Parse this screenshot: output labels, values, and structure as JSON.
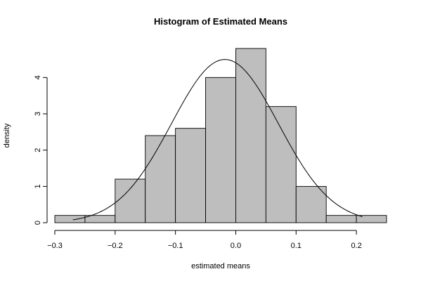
{
  "chart_data": {
    "type": "bar",
    "title": "Histogram of Estimated Means",
    "xlabel": "estimated means",
    "ylabel": "density",
    "bin_edges": [
      -0.3,
      -0.25,
      -0.2,
      -0.15,
      -0.1,
      -0.05,
      0.0,
      0.05,
      0.1,
      0.15,
      0.2,
      0.25
    ],
    "values": [
      0.2,
      0.2,
      1.2,
      2.4,
      2.6,
      4.0,
      4.8,
      3.2,
      1.0,
      0.2,
      0.2
    ],
    "xlim": [
      -0.3,
      0.25
    ],
    "ylim": [
      0,
      4.8
    ],
    "x_ticks": [
      -0.3,
      -0.2,
      -0.1,
      0.0,
      0.1,
      0.2
    ],
    "x_tick_labels": [
      "−0.3",
      "−0.2",
      "−0.1",
      "0.0",
      "0.1",
      "0.2"
    ],
    "y_ticks": [
      0,
      1,
      2,
      3,
      4
    ],
    "y_tick_labels": [
      "0",
      "1",
      "2",
      "3",
      "4"
    ],
    "density_curve": {
      "type": "normal",
      "mean": -0.018,
      "sd": 0.0887,
      "x_range": [
        -0.27,
        0.21
      ]
    },
    "grid": false,
    "legend": "none",
    "colors": {
      "bar_fill": "#bebebe",
      "bar_stroke": "#000000",
      "curve": "#000000"
    }
  }
}
